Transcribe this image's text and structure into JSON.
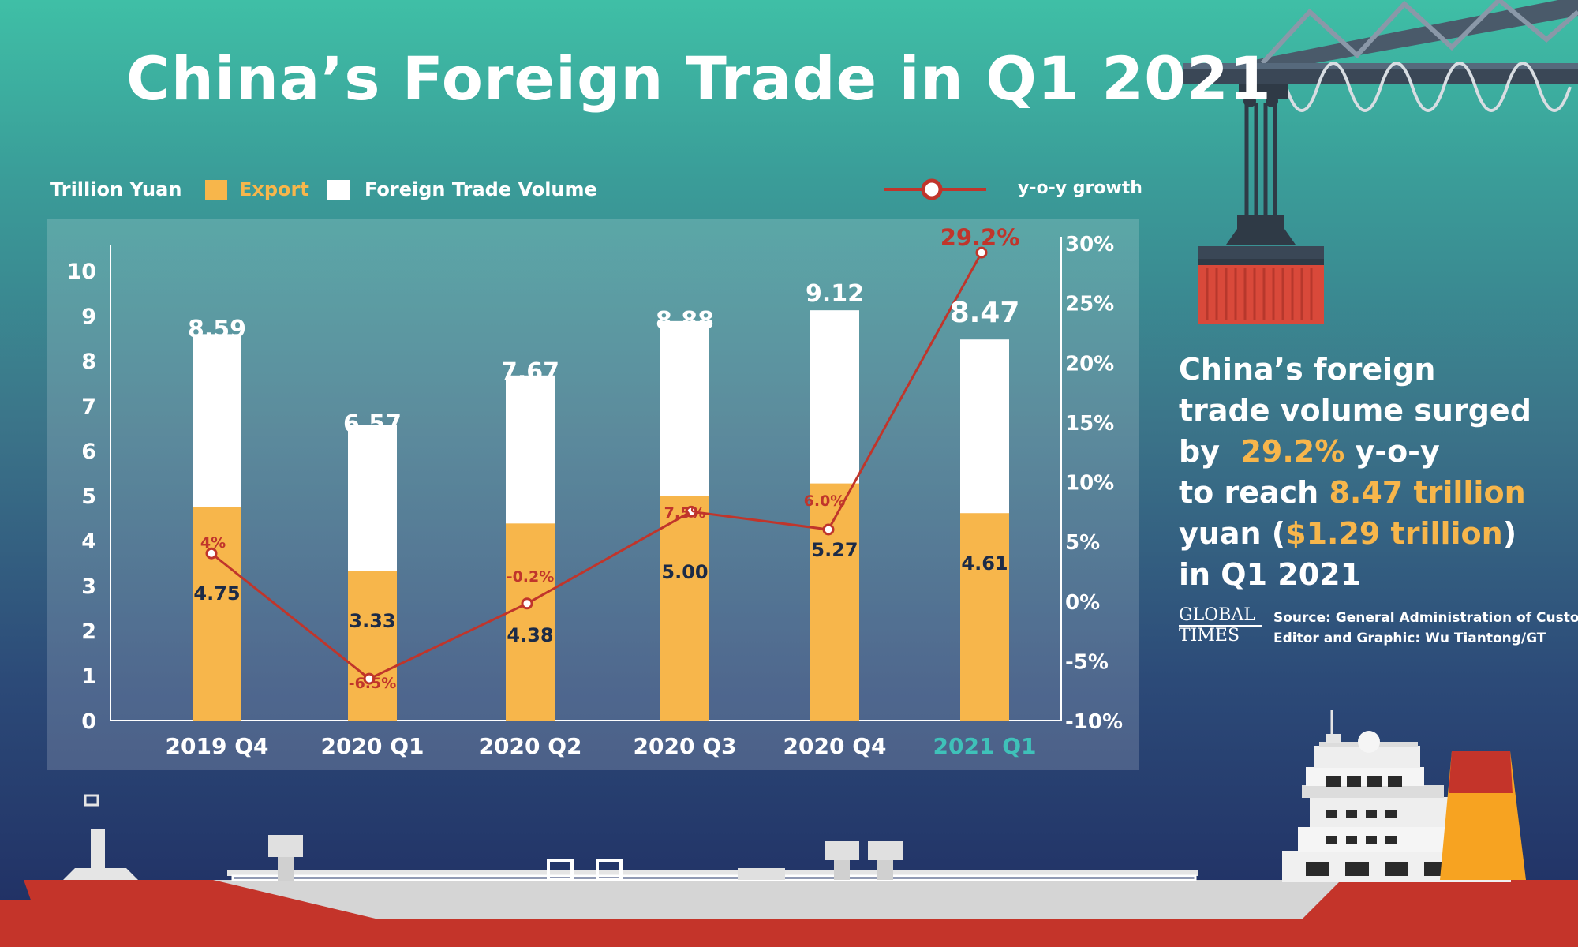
{
  "title": "China’s Foreign Trade in Q1 2021",
  "legend": {
    "unit": "Trillion Yuan",
    "export": "Export",
    "volume": "Foreign Trade Volume",
    "growth": "y-o-y growth"
  },
  "colors": {
    "export": "#f7b64b",
    "volume": "#ffffff",
    "growth": "#c0352b",
    "highlight_category": "#3fc1b9"
  },
  "side": {
    "line1": "China’s foreign",
    "line2": "trade volume surged",
    "line3_pre": "by",
    "line3_hl": "29.2%",
    "line3_post": "y-o-y",
    "line4_pre": "to reach",
    "line4_hl": "8.47 trillion",
    "line5_pre": "yuan (",
    "line5_hl": "$1.29 trillion",
    "line5_post": ")",
    "line6": "in Q1 2021"
  },
  "source": {
    "source": "Source: General Administration of Customs",
    "editor": "Editor and Graphic: Wu Tiantong/GT"
  },
  "logo": {
    "line1": "GLOBAL",
    "line2": "TIMES"
  },
  "chart_data": {
    "type": "bar",
    "categories": [
      "2019 Q4",
      "2020 Q1",
      "2020 Q2",
      "2020 Q3",
      "2020 Q4",
      "2021 Q1"
    ],
    "highlight_category_index": 5,
    "series": [
      {
        "name": "Foreign Trade Volume",
        "values": [
          8.59,
          6.57,
          7.67,
          8.88,
          9.12,
          8.47
        ],
        "labels": [
          "8.59",
          "6.57",
          "7.67",
          "8.88",
          "9.12",
          "8.47"
        ]
      },
      {
        "name": "Export",
        "values": [
          4.75,
          3.33,
          4.38,
          5.0,
          5.27,
          4.61
        ],
        "labels": [
          "4.75",
          "3.33",
          "4.38",
          "5.00",
          "5.27",
          "4.61"
        ]
      },
      {
        "name": "y-o-y growth",
        "type": "line",
        "axis": "right",
        "values": [
          4,
          -6.5,
          -0.2,
          7.5,
          6.0,
          29.2
        ],
        "labels": [
          "4%",
          "-6.5%",
          "-0.2%",
          "7.5%",
          "6.0%",
          "29.2%"
        ]
      }
    ],
    "ylabel": "Trillion Yuan",
    "ylim": [
      0,
      10
    ],
    "yticks": [
      "0",
      "1",
      "2",
      "3",
      "4",
      "5",
      "6",
      "7",
      "8",
      "9",
      "10"
    ],
    "y2lim": [
      -10,
      30
    ],
    "y2ticks": [
      "-10%",
      "-5%",
      "0%",
      "5%",
      "10%",
      "15%",
      "20%",
      "25%",
      "30%"
    ],
    "grid": false,
    "legend_position": "top"
  }
}
